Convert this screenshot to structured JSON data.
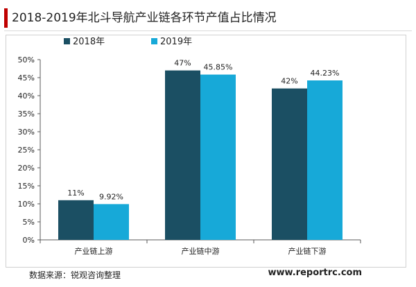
{
  "header": {
    "title": "2018-2019年北斗导航产业链各环节产值占比情况"
  },
  "footer": {
    "source": "数据来源：锐观咨询整理",
    "website": "www.reportrc.com"
  },
  "colors": {
    "accent": "#c00000",
    "series_2018": "#1b4f63",
    "series_2019": "#17a9d8"
  },
  "chart_data": {
    "type": "bar",
    "title": "2018-2019年北斗导航产业链各环节产值占比情况",
    "categories": [
      "产业链上游",
      "产业链中游",
      "产业链下游"
    ],
    "series": [
      {
        "name": "2018年",
        "values": [
          11,
          47,
          42
        ],
        "labels": [
          "11%",
          "47%",
          "42%"
        ]
      },
      {
        "name": "2019年",
        "values": [
          9.92,
          45.85,
          44.23
        ],
        "labels": [
          "9.92%",
          "45.85%",
          "44.23%"
        ]
      }
    ],
    "yticks": [
      "0%",
      "5%",
      "10%",
      "15%",
      "20%",
      "25%",
      "30%",
      "35%",
      "40%",
      "45%",
      "50%"
    ],
    "ylim": [
      0,
      50
    ],
    "unit": "%",
    "grid": false,
    "legend": "top"
  }
}
